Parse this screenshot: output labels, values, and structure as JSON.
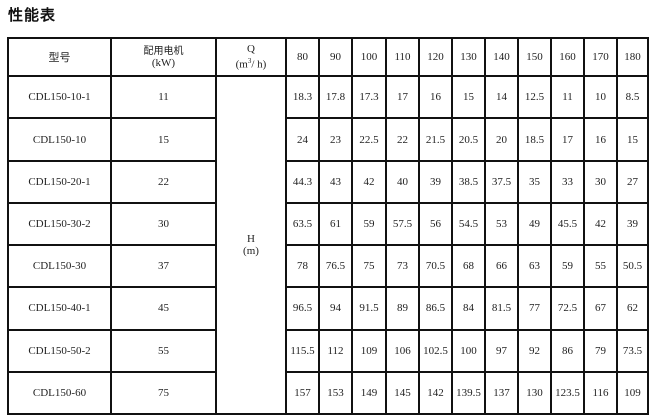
{
  "title": "性能表",
  "header": {
    "model": "型号",
    "motor_line1": "配用电机",
    "motor_line2": "(kW)",
    "q_line1": "Q",
    "q_line2_pre": "(m",
    "q_line2_sup": "3",
    "q_line2_post": "/ h)",
    "flows": [
      "80",
      "90",
      "100",
      "110",
      "120",
      "130",
      "140",
      "150",
      "160",
      "170",
      "180"
    ]
  },
  "h_label_line1": "H",
  "h_label_line2": "(m)",
  "rows": [
    {
      "model": "CDL150-10-1",
      "kw": "11",
      "heads": [
        "18.3",
        "17.8",
        "17.3",
        "17",
        "16",
        "15",
        "14",
        "12.5",
        "11",
        "10",
        "8.5"
      ]
    },
    {
      "model": "CDL150-10",
      "kw": "15",
      "heads": [
        "24",
        "23",
        "22.5",
        "22",
        "21.5",
        "20.5",
        "20",
        "18.5",
        "17",
        "16",
        "15"
      ]
    },
    {
      "model": "CDL150-20-1",
      "kw": "22",
      "heads": [
        "44.3",
        "43",
        "42",
        "40",
        "39",
        "38.5",
        "37.5",
        "35",
        "33",
        "30",
        "27"
      ]
    },
    {
      "model": "CDL150-30-2",
      "kw": "30",
      "heads": [
        "63.5",
        "61",
        "59",
        "57.5",
        "56",
        "54.5",
        "53",
        "49",
        "45.5",
        "42",
        "39"
      ]
    },
    {
      "model": "CDL150-30",
      "kw": "37",
      "heads": [
        "78",
        "76.5",
        "75",
        "73",
        "70.5",
        "68",
        "66",
        "63",
        "59",
        "55",
        "50.5"
      ]
    },
    {
      "model": "CDL150-40-1",
      "kw": "45",
      "heads": [
        "96.5",
        "94",
        "91.5",
        "89",
        "86.5",
        "84",
        "81.5",
        "77",
        "72.5",
        "67",
        "62"
      ]
    },
    {
      "model": "CDL150-50-2",
      "kw": "55",
      "heads": [
        "115.5",
        "112",
        "109",
        "106",
        "102.5",
        "100",
        "97",
        "92",
        "86",
        "79",
        "73.5"
      ]
    },
    {
      "model": "CDL150-60",
      "kw": "75",
      "heads": [
        "157",
        "153",
        "149",
        "145",
        "142",
        "139.5",
        "137",
        "130",
        "123.5",
        "116",
        "109"
      ]
    }
  ]
}
